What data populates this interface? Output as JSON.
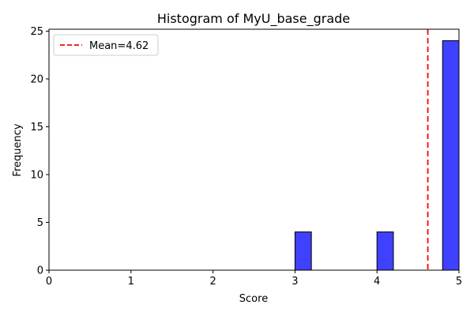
{
  "chart_data": {
    "type": "bar",
    "title": "Histogram of MyU_base_grade",
    "xlabel": "Score",
    "ylabel": "Frequency",
    "xlim": [
      0,
      5
    ],
    "ylim": [
      0,
      25.2
    ],
    "xticks": [
      0,
      1,
      2,
      3,
      4,
      5
    ],
    "yticks": [
      0,
      5,
      10,
      15,
      20,
      25
    ],
    "bin_width": 0.2,
    "bins": [
      {
        "start": 3.0,
        "end": 3.2,
        "count": 4
      },
      {
        "start": 3.2,
        "end": 3.4,
        "count": 0
      },
      {
        "start": 3.4,
        "end": 3.6,
        "count": 0
      },
      {
        "start": 3.6,
        "end": 3.8,
        "count": 0
      },
      {
        "start": 3.8,
        "end": 4.0,
        "count": 0
      },
      {
        "start": 4.0,
        "end": 4.2,
        "count": 4
      },
      {
        "start": 4.2,
        "end": 4.4,
        "count": 0
      },
      {
        "start": 4.4,
        "end": 4.6,
        "count": 0
      },
      {
        "start": 4.6,
        "end": 4.8,
        "count": 0
      },
      {
        "start": 4.8,
        "end": 5.0,
        "count": 24
      }
    ],
    "bar_color": "#4040ff",
    "bar_edge_color": "#000000",
    "mean_line": {
      "value": 4.62,
      "label": "Mean=4.62",
      "color": "#ff0000",
      "style": "dashed"
    },
    "legend_position": "top-left",
    "grid": false
  }
}
